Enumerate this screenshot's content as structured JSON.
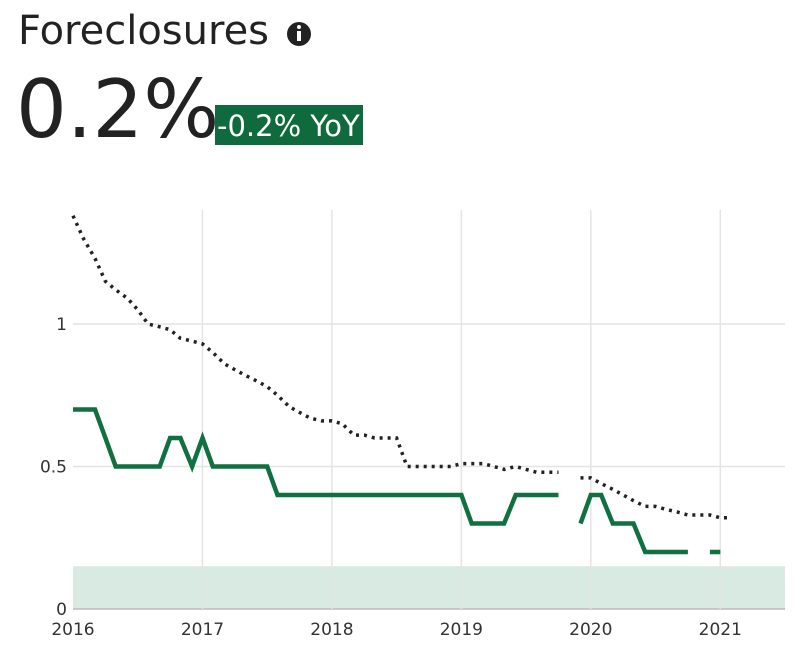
{
  "header": {
    "title": "Foreclosures",
    "value": "0.2%",
    "change": "-0.2% YoY"
  },
  "chart_data": {
    "type": "line",
    "x": [
      2016.0,
      2016.08,
      2016.17,
      2016.25,
      2016.33,
      2016.42,
      2016.5,
      2016.58,
      2016.67,
      2016.75,
      2016.83,
      2016.92,
      2017.0,
      2017.08,
      2017.17,
      2017.25,
      2017.33,
      2017.42,
      2017.5,
      2017.58,
      2017.67,
      2017.75,
      2017.83,
      2017.92,
      2018.0,
      2018.08,
      2018.17,
      2018.25,
      2018.33,
      2018.42,
      2018.5,
      2018.58,
      2018.67,
      2018.75,
      2018.83,
      2018.92,
      2019.0,
      2019.08,
      2019.17,
      2019.25,
      2019.33,
      2019.42,
      2019.5,
      2019.58,
      2019.67,
      2019.75,
      2019.83,
      2019.92,
      2020.0,
      2020.08,
      2020.17,
      2020.25,
      2020.33,
      2020.42,
      2020.5,
      2020.58,
      2020.67,
      2020.75,
      2020.83,
      2020.92,
      2021.0,
      2021.08
    ],
    "series": [
      {
        "color": "#222222",
        "dash": true,
        "values": [
          1.38,
          1.3,
          1.23,
          1.15,
          1.12,
          1.09,
          1.05,
          1.0,
          0.99,
          0.98,
          0.95,
          0.94,
          0.93,
          0.9,
          0.86,
          0.84,
          0.82,
          0.8,
          0.78,
          0.75,
          0.71,
          0.69,
          0.67,
          0.66,
          0.66,
          0.65,
          0.61,
          0.61,
          0.6,
          0.6,
          0.6,
          0.5,
          0.5,
          0.5,
          0.5,
          0.5,
          0.51,
          0.51,
          0.51,
          0.5,
          0.49,
          0.5,
          0.49,
          0.48,
          0.48,
          0.48,
          null,
          0.46,
          0.46,
          0.44,
          0.42,
          0.4,
          0.38,
          0.36,
          0.36,
          0.35,
          0.34,
          0.33,
          0.33,
          0.33,
          0.32,
          0.32
        ]
      },
      {
        "color": "#10703f",
        "dash": false,
        "values": [
          0.7,
          0.7,
          0.7,
          0.6,
          0.5,
          0.5,
          0.5,
          0.5,
          0.5,
          0.6,
          0.6,
          0.5,
          0.6,
          0.5,
          0.5,
          0.5,
          0.5,
          0.5,
          0.5,
          0.4,
          0.4,
          0.4,
          0.4,
          0.4,
          0.4,
          0.4,
          0.4,
          0.4,
          0.4,
          0.4,
          0.4,
          0.4,
          0.4,
          0.4,
          0.4,
          0.4,
          0.4,
          0.3,
          0.3,
          0.3,
          0.3,
          0.4,
          0.4,
          0.4,
          0.4,
          0.4,
          null,
          0.3,
          0.4,
          0.4,
          0.3,
          0.3,
          0.3,
          0.2,
          0.2,
          0.2,
          0.2,
          0.2,
          null,
          0.2,
          0.2,
          null
        ]
      }
    ],
    "shaded_range": [
      0,
      0.15
    ],
    "shaded_color": "#d8eae1",
    "xlim": [
      2016,
      2021.5
    ],
    "xticks": [
      2016,
      2017,
      2018,
      2019,
      2020,
      2021
    ],
    "ylim": [
      0,
      1.4
    ],
    "yticks": [
      0,
      0.5,
      1
    ],
    "grid": true
  }
}
